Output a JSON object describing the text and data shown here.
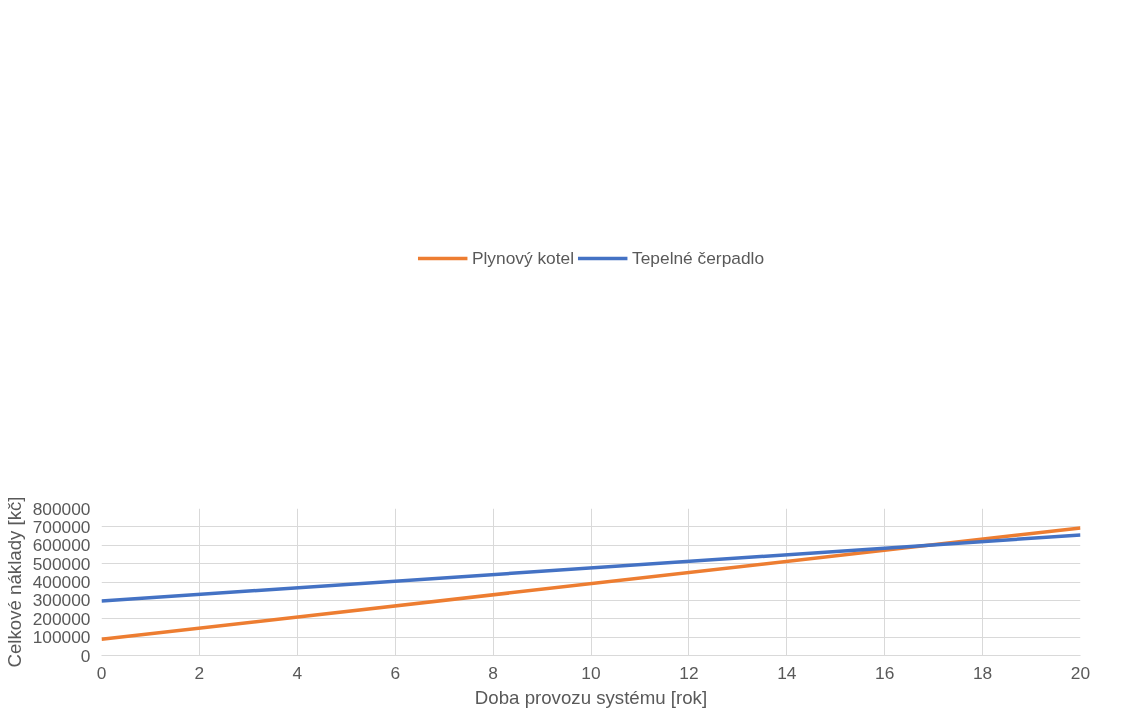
{
  "chart_data": {
    "type": "line",
    "xlabel": "Doba provozu systému [rok]",
    "ylabel": "Celkové náklady [kč]",
    "x": [
      0,
      20
    ],
    "series": [
      {
        "name": "Plynový kotel",
        "color": "#ed7d31",
        "values": [
          88000,
          694000
        ]
      },
      {
        "name": "Tepelné čerpadlo",
        "color": "#4472c4",
        "values": [
          297000,
          656000
        ]
      }
    ],
    "xlim": [
      0,
      20
    ],
    "xticks": [
      0,
      2,
      4,
      6,
      8,
      10,
      12,
      14,
      16,
      18,
      20
    ],
    "ylim": [
      0,
      800000
    ],
    "yticks": [
      0,
      100000,
      200000,
      300000,
      400000,
      500000,
      600000,
      700000,
      800000
    ],
    "grid": true,
    "legend": "top",
    "marker": "none",
    "line_style": "solid"
  }
}
